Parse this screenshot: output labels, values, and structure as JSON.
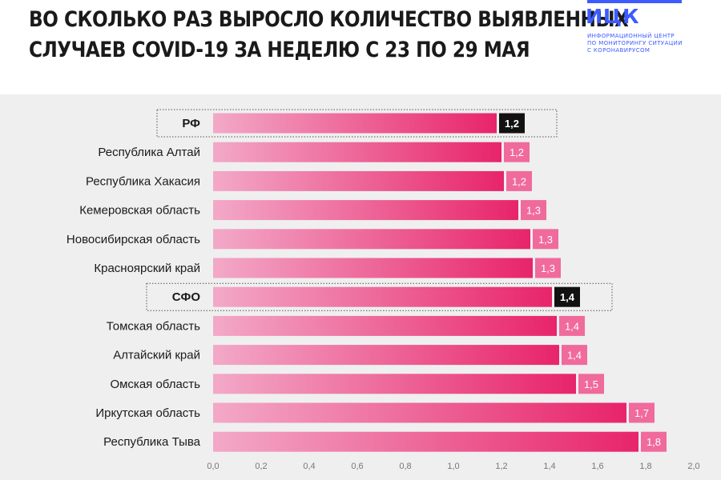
{
  "header": {
    "title_line1": "ВО СКОЛЬКО РАЗ ВЫРОСЛО КОЛИЧЕСТВО ВЫЯВЛЕННЫХ",
    "title_line2": "СЛУЧАЕВ COVID-19 ЗА НЕДЕЛЮ С 23 ПО 29 МАЯ"
  },
  "logo": {
    "word": "ИЦК",
    "sub_line1": "Информационный центр",
    "sub_line2": "по мониторингу ситуации",
    "sub_line3": "с коронавирусом",
    "color": "#3d5bff"
  },
  "colors": {
    "bar_gradient_start": "#f3a9c8",
    "bar_gradient_end": "#e8246a",
    "label_bg": "#f06a9c",
    "highlight_label_bg": "#111111",
    "background": "#efefef"
  },
  "chart_data": {
    "type": "bar",
    "orientation": "horizontal",
    "title": "ВО СКОЛЬКО РАЗ ВЫРОСЛО КОЛИЧЕСТВО ВЫЯВЛЕННЫХ СЛУЧАЕВ COVID-19 ЗА НЕДЕЛЮ С 23 ПО 29 МАЯ",
    "categories": [
      "РФ",
      "Республика Алтай",
      "Республика Хакасия",
      "Кемеровская область",
      "Новосибирская область",
      "Красноярский край",
      "СФО",
      "Томская область",
      "Алтайский край",
      "Омская область",
      "Иркутская область",
      "Республика Тыва"
    ],
    "values": [
      1.18,
      1.2,
      1.21,
      1.27,
      1.32,
      1.33,
      1.41,
      1.43,
      1.44,
      1.51,
      1.72,
      1.77
    ],
    "value_labels": [
      "1,2",
      "1,2",
      "1,2",
      "1,3",
      "1,3",
      "1,3",
      "1,4",
      "1,4",
      "1,4",
      "1,5",
      "1,7",
      "1,8"
    ],
    "highlighted": [
      "РФ",
      "СФО"
    ],
    "xlim": [
      0,
      2.0
    ],
    "xticks": [
      0,
      0.2,
      0.4,
      0.6,
      0.8,
      1.0,
      1.2,
      1.4,
      1.6,
      1.8,
      2.0
    ],
    "xtick_labels": [
      "0,0",
      "0,2",
      "0,4",
      "0,6",
      "0,8",
      "1,0",
      "1,2",
      "1,4",
      "1,6",
      "1,8",
      "2,0"
    ],
    "xlabel": "",
    "ylabel": "",
    "grid": false
  }
}
